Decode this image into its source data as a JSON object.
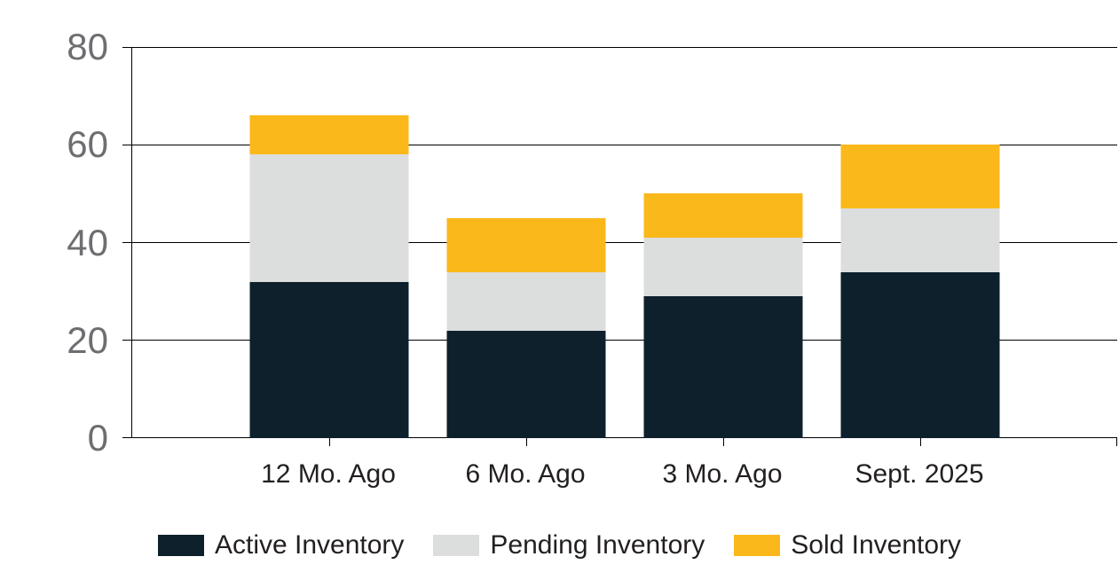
{
  "chart_data": {
    "type": "bar",
    "stacked": true,
    "title": "",
    "xlabel": "",
    "ylabel": "",
    "categories": [
      "12 Mo. Ago",
      "6 Mo. Ago",
      "3 Mo. Ago",
      "Sept. 2025"
    ],
    "series": [
      {
        "name": "Active Inventory",
        "color": "#0d202c",
        "values": [
          32,
          22,
          29,
          34
        ]
      },
      {
        "name": "Pending Inventory",
        "color": "#dcdddd",
        "values": [
          26,
          12,
          12,
          13
        ]
      },
      {
        "name": "Sold Inventory",
        "color": "#fbb81a",
        "values": [
          8,
          11,
          9,
          13
        ]
      }
    ],
    "totals": [
      66,
      45,
      50,
      60
    ],
    "ylim": [
      0,
      80
    ],
    "yticks": [
      0,
      20,
      40,
      60,
      80
    ],
    "grid": true,
    "legend_position": "bottom"
  },
  "colors": {
    "background": "#ffffff",
    "axis_line": "#000000",
    "y_tick_label": "#6d6e71",
    "x_tick_label": "#231f20",
    "legend_text": "#231f20",
    "series_active": "#0d202c",
    "series_pending": "#dcdddd",
    "series_sold": "#fbb81a"
  }
}
